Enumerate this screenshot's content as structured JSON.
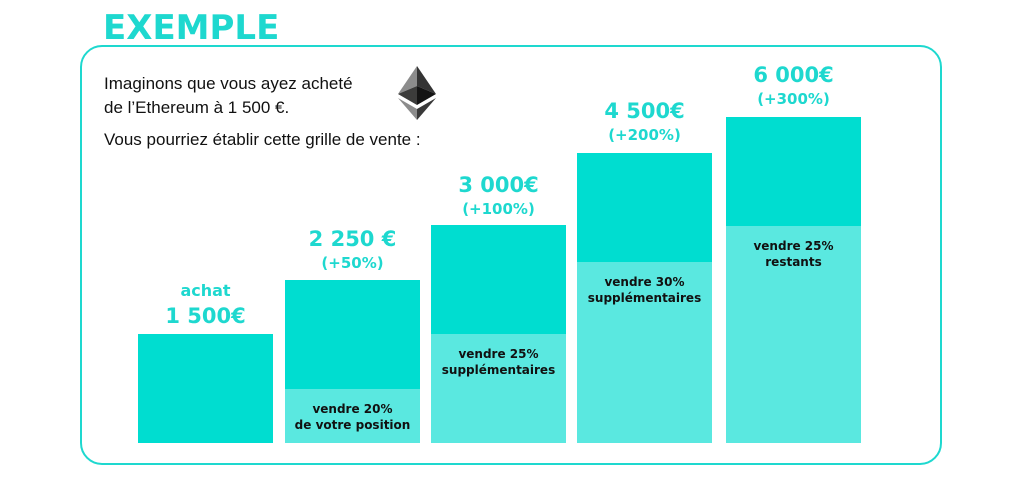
{
  "title": "EXEMPLE",
  "intro": {
    "line1": "Imaginons que vous ayez acheté",
    "line2": "de l’Ethereum à 1 500 €.",
    "line3": "Vous pourriez établir cette grille de vente :"
  },
  "icon": "ethereum-icon",
  "colors": {
    "accent": "#1ed8cf",
    "bar_dark": "#00ddd0",
    "bar_light": "#5ae8e0"
  },
  "steps": [
    {
      "label": "achat",
      "amount": "1 500€",
      "percent": "",
      "sell": ""
    },
    {
      "label": "",
      "amount": "2 250 €",
      "percent": "(+50%)",
      "sell": "vendre 20%\nde votre position"
    },
    {
      "label": "",
      "amount": "3 000€",
      "percent": "(+100%)",
      "sell": "vendre 25%\nsupplémentaires"
    },
    {
      "label": "",
      "amount": "4 500€",
      "percent": "(+200%)",
      "sell": "vendre 30%\nsupplémentaires"
    },
    {
      "label": "",
      "amount": "6 000€",
      "percent": "(+300%)",
      "sell": "vendre 25%\nrestants"
    }
  ]
}
